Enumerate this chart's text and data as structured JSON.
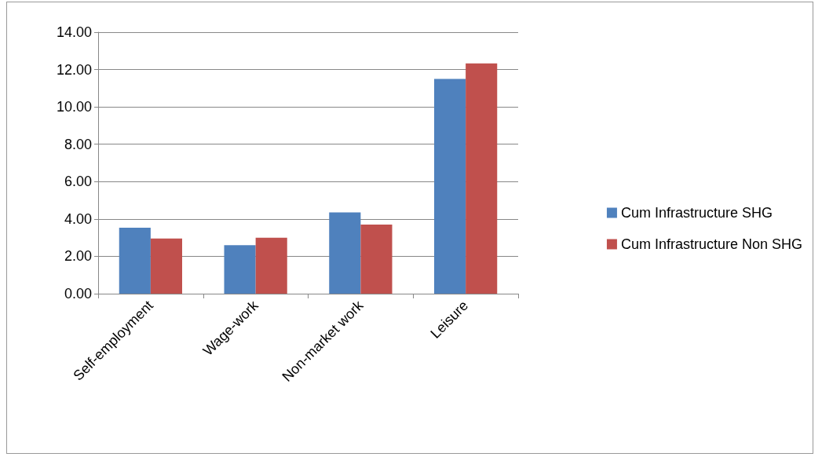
{
  "chart_data": {
    "type": "bar",
    "categories": [
      "Self-employment",
      "Wage-work",
      "Non-market work",
      "Leisure"
    ],
    "series": [
      {
        "name": "Cum Infrastructure SHG",
        "color": "#4f81bd",
        "values": [
          3.53,
          2.6,
          4.35,
          11.5
        ]
      },
      {
        "name": "Cum Infrastructure Non SHG",
        "color": "#c0504d",
        "values": [
          2.95,
          3.0,
          3.7,
          12.33
        ]
      }
    ],
    "ylim": [
      0,
      14
    ],
    "yticks": [
      {
        "value": 0,
        "label": "0.00"
      },
      {
        "value": 2,
        "label": "2.00"
      },
      {
        "value": 4,
        "label": "4.00"
      },
      {
        "value": 6,
        "label": "6.00"
      },
      {
        "value": 8,
        "label": "8.00"
      },
      {
        "value": 10,
        "label": "10.00"
      },
      {
        "value": 12,
        "label": "12.00"
      },
      {
        "value": 14,
        "label": "14.00"
      }
    ],
    "grid": "y",
    "legend": "right"
  }
}
